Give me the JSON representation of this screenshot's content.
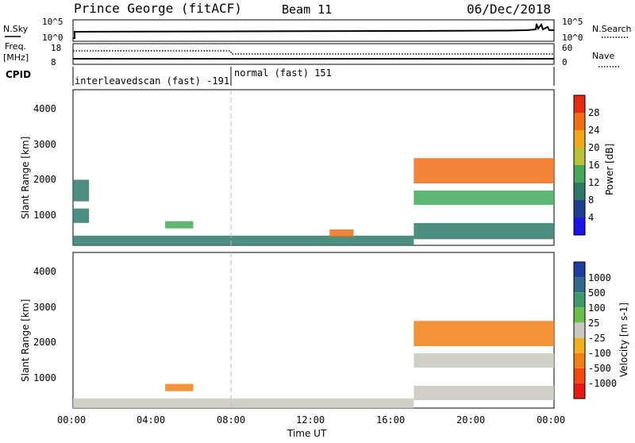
{
  "header": {
    "title": "Prince George (fitACF)",
    "beam": "Beam 11",
    "date": "06/Dec/2018"
  },
  "strip1": {
    "left_label": "N.Sky",
    "left_ticks": [
      "10^5",
      "10^0"
    ],
    "right_ticks": [
      "10^5",
      "10^0"
    ],
    "right_label": "N.Search"
  },
  "strip2": {
    "left_label_top": "Freq.",
    "left_label_bottom": "[MHz]",
    "left_ticks": [
      "18",
      "8"
    ],
    "right_ticks": [
      "60",
      "0"
    ],
    "right_label": "Nave"
  },
  "cpid": {
    "label": "CPID",
    "segments": [
      "interleavedscan (fast) -191",
      "normal (fast) 151"
    ]
  },
  "axes": {
    "xlabel": "Time UT",
    "xticks": [
      "00:00",
      "04:00",
      "08:00",
      "12:00",
      "16:00",
      "20:00",
      "00:00"
    ],
    "ylabel": "Slant Range [km]",
    "yticks": [
      "1000",
      "2000",
      "3000",
      "4000"
    ]
  },
  "power_colorbar": {
    "label": "Power [dB]",
    "ticks": [
      "4",
      "8",
      "12",
      "16",
      "20",
      "24",
      "28"
    ],
    "colors": [
      "#1a14e8",
      "#1f3f8f",
      "#2e7a6a",
      "#43a85a",
      "#b8c23a",
      "#f0a818",
      "#f07018",
      "#e62a14"
    ]
  },
  "velocity_colorbar": {
    "label": "Velocity [m s-1]",
    "ticks": [
      "1000",
      "500",
      "100",
      "25",
      "-25",
      "-100",
      "-500",
      "-1000"
    ],
    "colors": [
      "#1f3fa0",
      "#2f6a8a",
      "#3e9a6a",
      "#6cc04a",
      "#c8c8c0",
      "#f0b020",
      "#f08018",
      "#f04a14",
      "#e81a14"
    ]
  },
  "chart_data": [
    {
      "type": "heatmap",
      "title": "Power [dB]",
      "xlabel": "Time UT",
      "ylabel": "Slant Range [km]",
      "xlim": [
        0,
        24
      ],
      "ylim": [
        180,
        4500
      ],
      "zlim": [
        0,
        32
      ],
      "regions": [
        {
          "t": [
            0.0,
            0.8
          ],
          "r": [
            800,
            1200
          ],
          "value": 10
        },
        {
          "t": [
            0.0,
            0.8
          ],
          "r": [
            1400,
            2000
          ],
          "value": 8
        },
        {
          "t": [
            4.6,
            6.0
          ],
          "r": [
            650,
            850
          ],
          "value": 14
        },
        {
          "t": [
            0.0,
            17.0
          ],
          "r": [
            180,
            450
          ],
          "value": 8
        },
        {
          "t": [
            12.8,
            14.0
          ],
          "r": [
            420,
            620
          ],
          "value": 26
        },
        {
          "t": [
            17.0,
            24.0
          ],
          "r": [
            1900,
            2600
          ],
          "value": 24
        },
        {
          "t": [
            17.0,
            24.0
          ],
          "r": [
            1300,
            1700
          ],
          "value": 12
        },
        {
          "t": [
            17.0,
            24.0
          ],
          "r": [
            350,
            800
          ],
          "value": 10
        }
      ]
    },
    {
      "type": "heatmap",
      "title": "Velocity [m s-1]",
      "xlabel": "Time UT",
      "ylabel": "Slant Range [km]",
      "xlim": [
        0,
        24
      ],
      "ylim": [
        180,
        4500
      ],
      "zlim": [
        -1000,
        1000
      ],
      "regions": [
        {
          "t": [
            4.6,
            6.0
          ],
          "r": [
            650,
            850
          ],
          "value": -150
        },
        {
          "t": [
            0.0,
            17.0
          ],
          "r": [
            180,
            450
          ],
          "value": 20
        },
        {
          "t": [
            17.0,
            24.0
          ],
          "r": [
            1900,
            2600
          ],
          "value": -300
        },
        {
          "t": [
            17.0,
            24.0
          ],
          "r": [
            1300,
            1700
          ],
          "value": 0
        },
        {
          "t": [
            17.0,
            24.0
          ],
          "r": [
            400,
            800
          ],
          "value": 0
        }
      ]
    }
  ]
}
